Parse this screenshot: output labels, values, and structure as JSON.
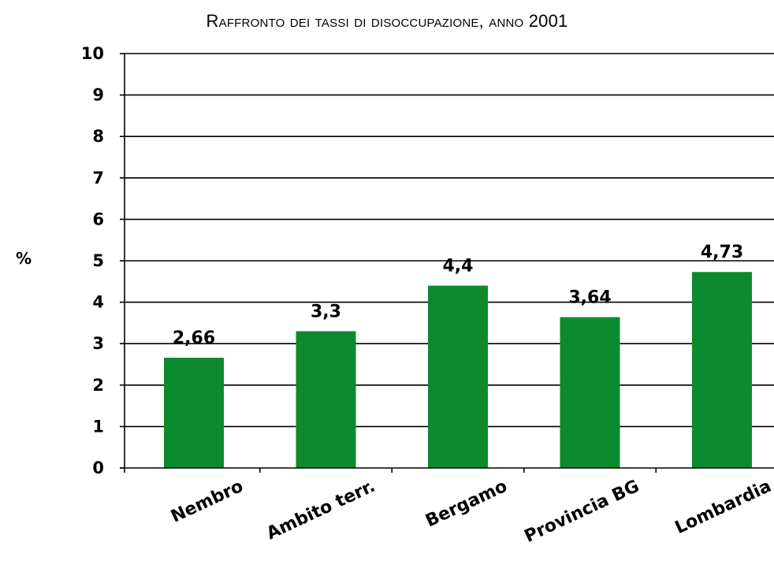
{
  "chart_data": {
    "type": "bar",
    "title": "Raffronto dei tassi di disoccupazione, anno 2001",
    "ylabel": "%",
    "xlabel": "",
    "categories": [
      "Nembro",
      "Ambito terr.",
      "Bergamo",
      "Provincia BG",
      "Lombardia"
    ],
    "values": [
      2.66,
      3.3,
      4.4,
      3.64,
      4.73
    ],
    "data_labels": [
      "2,66",
      "3,3",
      "4,4",
      "3,64",
      "4,73"
    ],
    "yticks": [
      "0",
      "1",
      "2",
      "3",
      "4",
      "5",
      "6",
      "7",
      "8",
      "9",
      "10"
    ],
    "ylim": [
      0,
      10
    ],
    "grid": true,
    "legend": "none",
    "bar_color": "#0d8a2e"
  }
}
